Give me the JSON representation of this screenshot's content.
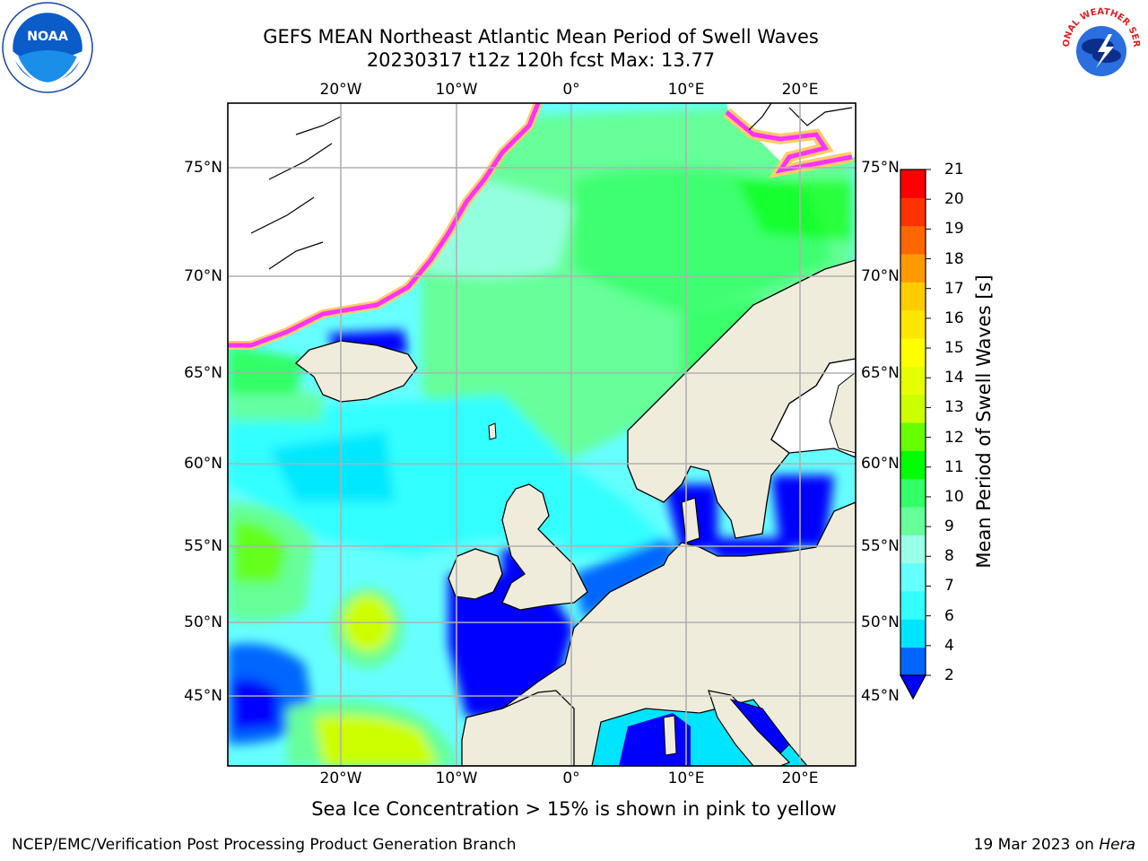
{
  "title": {
    "line1": "GEFS MEAN Northeast Atlantic Mean Period of Swell Waves",
    "line2": "20230317 t12z 120h fcst   Max: 13.77"
  },
  "logos": {
    "left": {
      "icon": "noaa-logo",
      "text": "NOAA"
    },
    "right": {
      "icon": "nws-logo",
      "text": "NATIONAL WEATHER SERVICE"
    }
  },
  "map": {
    "lon_ticks": [
      "20°W",
      "10°W",
      "0°",
      "10°E",
      "20°E"
    ],
    "lat_ticks": [
      "75°N",
      "70°N",
      "65°N",
      "60°N",
      "55°N",
      "50°N",
      "45°N"
    ],
    "lon_range": [
      -30,
      24
    ],
    "lat_range": [
      41,
      78
    ],
    "land_color": "#efecdc",
    "ice_colors": [
      "#ff33ff",
      "#ff99cc",
      "#ffcc66",
      "#ffff66"
    ]
  },
  "colorbar": {
    "title": "Mean Period of Swell Waves [s]",
    "levels": [
      "2",
      "4",
      "6",
      "7",
      "8",
      "9",
      "10",
      "11",
      "12",
      "13",
      "14",
      "15",
      "16",
      "17",
      "18",
      "19",
      "20",
      "21"
    ],
    "colors": [
      "#0066ff",
      "#00e5ff",
      "#33ffff",
      "#66ffff",
      "#99ffe6",
      "#66ff99",
      "#33ff66",
      "#00ff00",
      "#66ff00",
      "#ccff00",
      "#e6ff00",
      "#ffff00",
      "#ffe600",
      "#ffcc00",
      "#ff9900",
      "#ff6600",
      "#ff3300",
      "#ff0000"
    ],
    "under_color": "#0000ff"
  },
  "caption": "Sea Ice Concentration > 15% is shown in pink to yellow",
  "footer": {
    "left": "NCEP/EMC/Verification Post Processing Product Generation Branch",
    "date": "19 Mar 2023 on ",
    "machine": "Hera"
  }
}
